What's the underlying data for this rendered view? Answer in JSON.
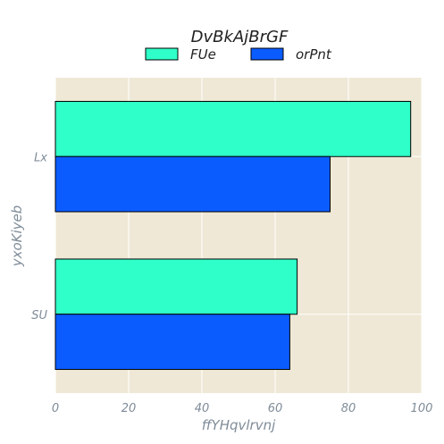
{
  "chart_data": {
    "type": "bar",
    "orientation": "horizontal",
    "title": "DvBkAjBrGF",
    "xlabel": "ffYHqvlrvnj",
    "ylabel": "yxoKiyeb",
    "categories": [
      "Lx",
      "SU"
    ],
    "series": [
      {
        "name": "FUe",
        "values": [
          97,
          66
        ],
        "color": "#2fffc8"
      },
      {
        "name": "orPnt",
        "values": [
          75,
          64
        ],
        "color": "#0b5cff"
      }
    ],
    "xlim": [
      0,
      100
    ],
    "xticks": [
      "0",
      "20",
      "40",
      "60",
      "80",
      "100"
    ],
    "grid": true,
    "legend_position": "top-center",
    "background_color": "#efe8d6",
    "grid_color": "#ffffff"
  }
}
